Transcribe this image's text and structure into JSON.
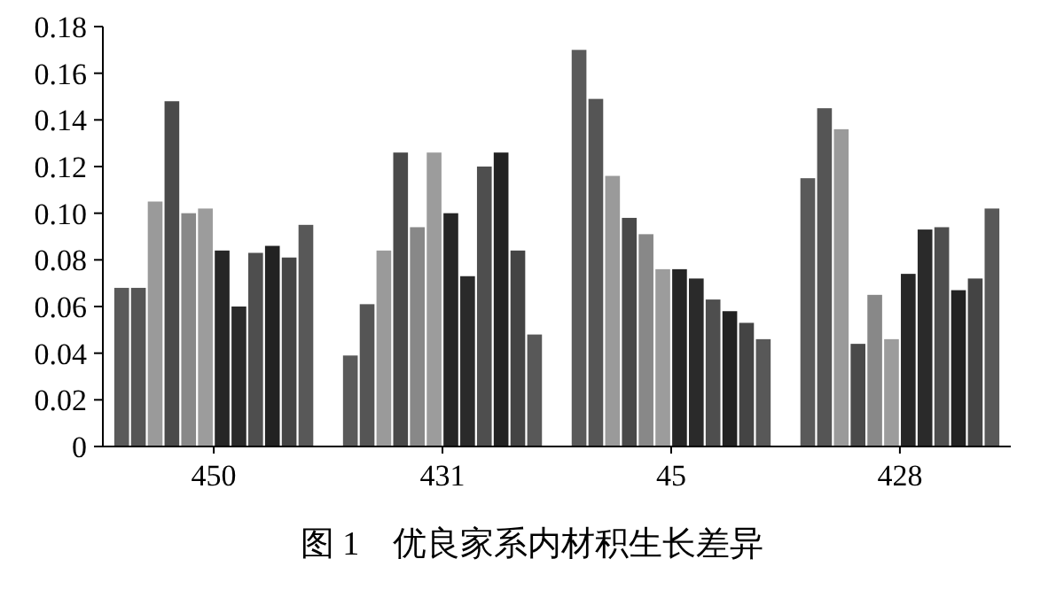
{
  "chart_data": {
    "type": "bar",
    "title": "图 1　优良家系内材积生长差异",
    "categories": [
      "450",
      "431",
      "45",
      "428"
    ],
    "series": [
      {
        "color": "#5a5a5a",
        "values": [
          0.068,
          0.039,
          0.17,
          0.115
        ]
      },
      {
        "color": "#555555",
        "values": [
          0.068,
          0.061,
          0.149,
          0.145
        ]
      },
      {
        "color": "#9a9a9a",
        "values": [
          0.105,
          0.084,
          0.116,
          0.136
        ]
      },
      {
        "color": "#4a4a4a",
        "values": [
          0.148,
          0.126,
          0.098,
          0.044
        ]
      },
      {
        "color": "#888888",
        "values": [
          0.1,
          0.094,
          0.091,
          0.065
        ]
      },
      {
        "color": "#9c9c9c",
        "values": [
          0.102,
          0.126,
          0.076,
          0.046
        ]
      },
      {
        "color": "#262626",
        "values": [
          0.084,
          0.1,
          0.076,
          0.074
        ]
      },
      {
        "color": "#2a2a2a",
        "values": [
          0.06,
          0.073,
          0.072,
          0.093
        ]
      },
      {
        "color": "#4e4e4e",
        "values": [
          0.083,
          0.12,
          0.063,
          0.094
        ]
      },
      {
        "color": "#222222",
        "values": [
          0.086,
          0.126,
          0.058,
          0.067
        ]
      },
      {
        "color": "#444444",
        "values": [
          0.081,
          0.084,
          0.053,
          0.072
        ]
      },
      {
        "color": "#585858",
        "values": [
          0.095,
          0.048,
          0.046,
          0.102
        ]
      }
    ],
    "ylim": [
      0,
      0.18
    ],
    "yticks": [
      0,
      {
        "value": 0.02,
        "label": "0.02"
      },
      {
        "value": 0.04,
        "label": "0.04"
      },
      {
        "value": 0.06,
        "label": "0.06"
      },
      {
        "value": 0.08,
        "label": "0.08"
      },
      {
        "value": 0.1,
        "label": "0.10"
      },
      {
        "value": 0.12,
        "label": "0.12"
      },
      {
        "value": 0.14,
        "label": "0.14"
      },
      {
        "value": 0.16,
        "label": "0.16"
      },
      {
        "value": 0.18,
        "label": "0.18"
      }
    ],
    "grid": false
  }
}
